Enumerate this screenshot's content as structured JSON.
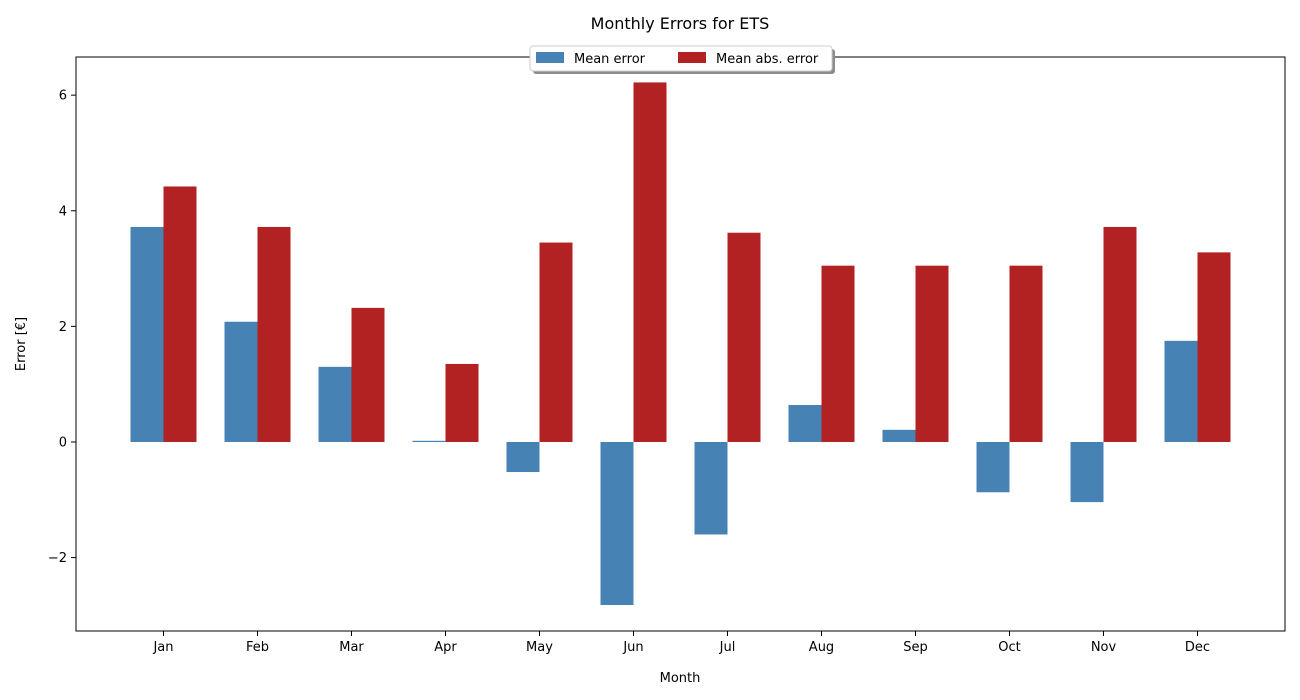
{
  "chart_data": {
    "type": "bar",
    "title": "Monthly Errors for ETS",
    "xlabel": "Month",
    "ylabel": "Error [€]",
    "categories": [
      "Jan",
      "Feb",
      "Mar",
      "Apr",
      "May",
      "Jun",
      "Jul",
      "Aug",
      "Sep",
      "Oct",
      "Nov",
      "Dec"
    ],
    "series": [
      {
        "name": "Mean error",
        "color": "#4682b4",
        "values": [
          3.72,
          2.08,
          1.3,
          0.02,
          -0.52,
          -2.82,
          -1.6,
          0.64,
          0.21,
          -0.87,
          -1.04,
          1.75
        ]
      },
      {
        "name": "Mean abs. error",
        "color": "#b22222",
        "values": [
          4.42,
          3.72,
          2.32,
          1.35,
          3.45,
          6.22,
          3.62,
          3.05,
          3.05,
          3.05,
          3.72,
          3.28
        ]
      }
    ],
    "ylim": [
      -3.27,
      6.66
    ],
    "yticks": [
      {
        "value": -2,
        "label": "−2"
      },
      {
        "value": 0,
        "label": "0"
      },
      {
        "value": 2,
        "label": "2"
      },
      {
        "value": 4,
        "label": "4"
      },
      {
        "value": 6,
        "label": "6"
      }
    ],
    "grid": false,
    "legend_position": "upper center"
  }
}
